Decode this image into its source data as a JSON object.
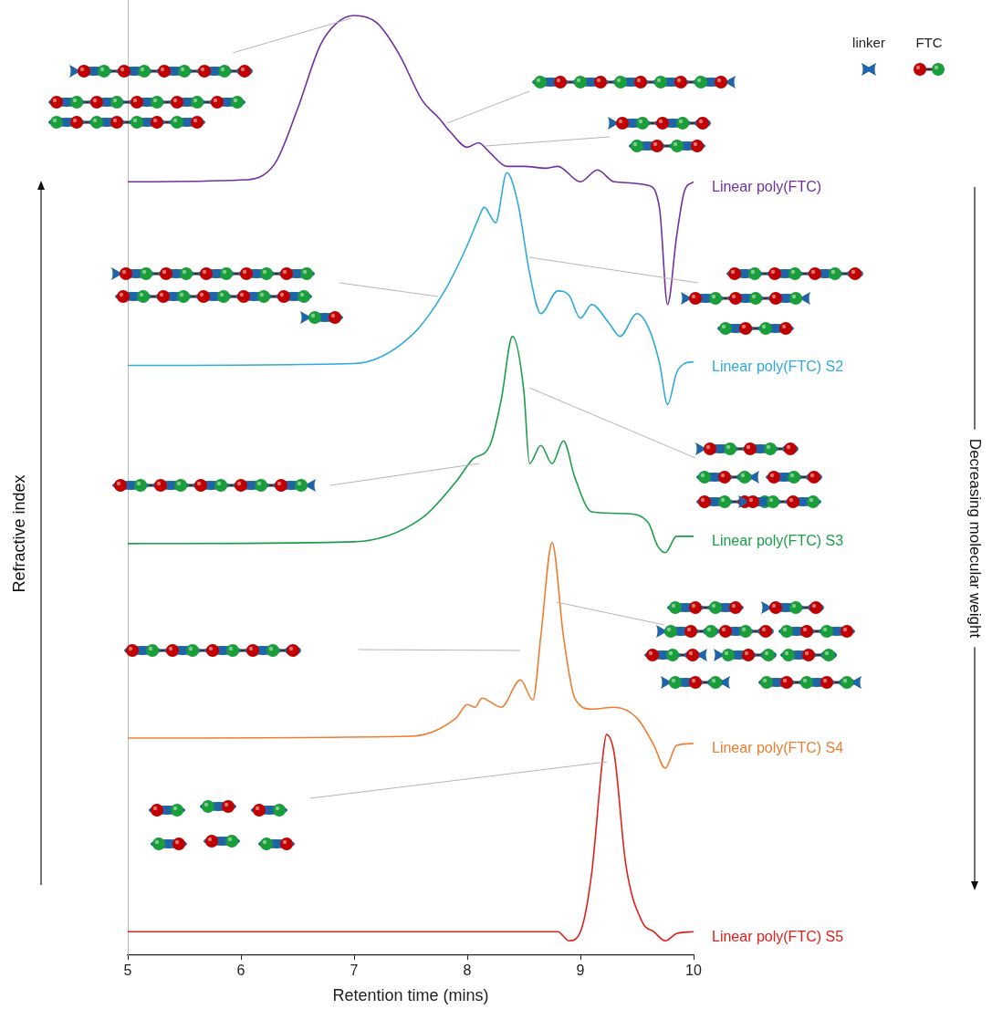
{
  "chart_data": {
    "type": "line",
    "x_label": "Retention time (mins)",
    "y_label": "Refractive index",
    "annotations": [
      "Decreasing molecular weight",
      "linker",
      "FTC"
    ],
    "xlim": [
      5,
      10
    ],
    "xticks": [
      5,
      6,
      7,
      8,
      9,
      10
    ],
    "ylim": [
      0,
      105
    ],
    "yticks": [],
    "tick_labels": "x",
    "grid": false,
    "series": [
      {
        "name": "Linear poly(FTC)",
        "color": "#7030a0",
        "x": [
          5,
          6,
          6.3,
          6.5,
          6.7,
          6.85,
          7,
          7.2,
          7.4,
          7.6,
          7.75,
          7.85,
          8,
          8.1,
          8.2,
          8.35,
          8.5,
          8.7,
          8.8,
          9,
          9.15,
          9.3,
          9.6,
          9.7,
          9.77,
          9.85,
          9.92,
          10
        ],
        "values": [
          85,
          85.2,
          87,
          93,
          100,
          102.5,
          103.3,
          102.5,
          99,
          94,
          92,
          90.5,
          88.8,
          89.3,
          88.2,
          86.7,
          86.7,
          86.5,
          86.7,
          85,
          86.3,
          85,
          84.6,
          82,
          71.5,
          79,
          84,
          85
        ]
      },
      {
        "name": "Linear poly(FTC) S2",
        "color": "#2eaadc",
        "x": [
          5,
          7,
          7.5,
          7.8,
          8,
          8.1,
          8.15,
          8.25,
          8.35,
          8.45,
          8.55,
          8.65,
          8.8,
          8.9,
          9,
          9.1,
          9.25,
          9.35,
          9.5,
          9.6,
          9.7,
          9.77,
          9.85,
          9.92,
          10
        ],
        "values": [
          64.8,
          65,
          68,
          73,
          78,
          81,
          82.2,
          80.5,
          86,
          82.5,
          75,
          70.5,
          73,
          72.5,
          70,
          71.5,
          69.5,
          68,
          70.5,
          69,
          65,
          60.5,
          64,
          65,
          65.2
        ]
      },
      {
        "name": "Linear poly(FTC) S3",
        "color": "#1a9e4a",
        "x": [
          5,
          7,
          7.6,
          7.9,
          8.05,
          8.2,
          8.3,
          8.4,
          8.5,
          8.55,
          8.65,
          8.75,
          8.85,
          8.95,
          9.1,
          9.4,
          9.6,
          9.68,
          9.75,
          9.85,
          10
        ],
        "values": [
          45.2,
          45.4,
          48,
          52,
          54.5,
          56,
          61,
          68,
          62,
          54,
          56,
          54,
          56.5,
          52.5,
          48.7,
          48.5,
          47.5,
          45,
          44.2,
          46,
          46
        ]
      },
      {
        "name": "Linear poly(FTC) S4",
        "color": "#ed7d31",
        "x": [
          5,
          7.5,
          7.9,
          8,
          8.07,
          8.13,
          8.3,
          8.47,
          8.58,
          8.65,
          8.75,
          8.85,
          8.95,
          9.1,
          9.3,
          9.5,
          9.65,
          9.75,
          9.85,
          10
        ],
        "values": [
          23.8,
          24,
          26,
          27.5,
          27.2,
          28.2,
          27.2,
          30.2,
          28,
          35,
          45.3,
          35,
          28.2,
          27,
          27.2,
          26,
          23,
          20.5,
          23,
          23.2
        ]
      },
      {
        "name": "Linear poly(FTC) S5",
        "color": "#e0201b",
        "x": [
          5,
          8.8,
          8.9,
          9,
          9.1,
          9.2,
          9.23,
          9.3,
          9.4,
          9.55,
          9.65,
          9.75,
          9.85,
          10
        ],
        "values": [
          2.5,
          2.5,
          1.5,
          2.5,
          9,
          22,
          24.2,
          22,
          10,
          3.5,
          2.5,
          1.5,
          2.3,
          2.5
        ]
      }
    ]
  }
}
